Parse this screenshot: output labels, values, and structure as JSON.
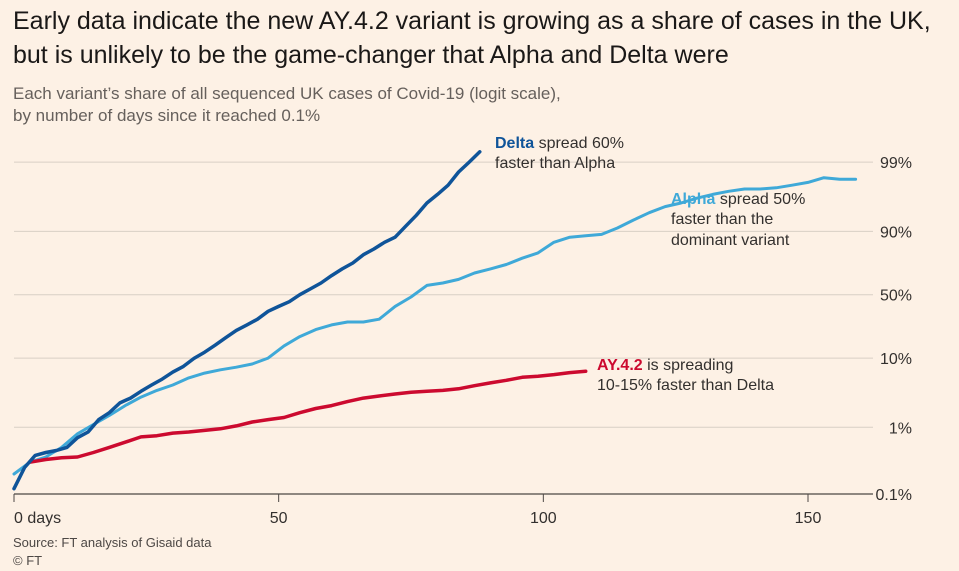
{
  "header": {
    "title": "Early data indicate the new AY.4.2 variant is growing as a share of cases in the UK, but is unlikely to be the game-changer that Alpha and Delta were",
    "subtitle_line1": "Each variant’s share of all sequenced UK cases of Covid-19 (logit scale),",
    "subtitle_line2": "by number of days since it reached 0.1%"
  },
  "footer": {
    "source": "Source: FT analysis of Gisaid data",
    "credit": "© FT"
  },
  "chart_data": {
    "type": "line",
    "x_scale": "linear",
    "y_scale": "logit",
    "xlim": [
      0,
      160
    ],
    "ylim_percent": [
      0.1,
      99.5
    ],
    "x_ticks": [
      {
        "value": 0,
        "label": "0 days"
      },
      {
        "value": 50,
        "label": "50"
      },
      {
        "value": 100,
        "label": "100"
      },
      {
        "value": 150,
        "label": "150"
      }
    ],
    "y_ticks": [
      {
        "value": 0.1,
        "label": "0.1%"
      },
      {
        "value": 1,
        "label": "1%"
      },
      {
        "value": 10,
        "label": "10%"
      },
      {
        "value": 50,
        "label": "50%"
      },
      {
        "value": 90,
        "label": "90%"
      },
      {
        "value": 99,
        "label": "99%"
      }
    ],
    "grid": true,
    "colors": {
      "delta": "#0f5499",
      "alpha": "#3fa9d8",
      "ay42": "#cc0a2f",
      "grid": "#d8cfc5",
      "axis": "#4d4845"
    },
    "series": [
      {
        "key": "delta",
        "x": [
          0,
          2,
          4,
          6,
          8,
          10,
          12,
          14,
          16,
          18,
          20,
          22,
          24,
          26,
          28,
          30,
          32,
          34,
          36,
          38,
          40,
          42,
          44,
          46,
          48,
          50,
          52,
          54,
          56,
          58,
          60,
          62,
          64,
          66,
          68,
          70,
          72,
          74,
          76,
          78,
          80,
          82,
          84,
          86,
          88
        ],
        "y": [
          0.12,
          0.25,
          0.38,
          0.42,
          0.45,
          0.5,
          0.7,
          0.85,
          1.3,
          1.65,
          2.3,
          2.7,
          3.4,
          4.2,
          5.1,
          6.4,
          7.7,
          9.9,
          12.0,
          14.8,
          18.4,
          22.5,
          26.0,
          30.0,
          36.0,
          40.0,
          44.0,
          50.0,
          55.0,
          60.0,
          66.0,
          71.0,
          75.0,
          80.0,
          83.0,
          86.0,
          88.0,
          91.5,
          94.0,
          96.0,
          97.0,
          97.8,
          98.6,
          99.0,
          99.3
        ]
      },
      {
        "key": "alpha",
        "x": [
          0,
          3,
          6,
          9,
          12,
          15,
          18,
          21,
          24,
          27,
          30,
          33,
          36,
          39,
          42,
          45,
          48,
          51,
          54,
          57,
          60,
          63,
          66,
          69,
          72,
          75,
          78,
          81,
          84,
          87,
          90,
          93,
          96,
          99,
          102,
          105,
          108,
          111,
          114,
          117,
          120,
          123,
          126,
          129,
          132,
          135,
          138,
          141,
          144,
          147,
          150,
          153,
          156,
          159
        ],
        "y": [
          0.2,
          0.3,
          0.36,
          0.5,
          0.8,
          1.1,
          1.5,
          2.1,
          2.8,
          3.5,
          4.2,
          5.3,
          6.2,
          6.9,
          7.5,
          8.3,
          10.0,
          14.5,
          19.0,
          23.0,
          26.0,
          28.0,
          28.0,
          30.0,
          40.0,
          48.0,
          58.0,
          60.0,
          63.0,
          68.0,
          71.0,
          74.0,
          78.0,
          81.0,
          86.0,
          88.0,
          88.5,
          89.0,
          91.0,
          93.0,
          94.5,
          95.5,
          96.0,
          96.6,
          97.0,
          97.3,
          97.5,
          97.5,
          97.6,
          97.8,
          98.0,
          98.3,
          98.2,
          98.2
        ]
      },
      {
        "key": "ay42",
        "x": [
          3,
          6,
          9,
          12,
          15,
          18,
          21,
          24,
          27,
          30,
          33,
          36,
          39,
          42,
          45,
          48,
          51,
          54,
          57,
          60,
          63,
          66,
          69,
          72,
          75,
          78,
          81,
          84,
          87,
          90,
          93,
          96,
          99,
          102,
          105,
          108
        ],
        "y": [
          0.3,
          0.33,
          0.35,
          0.36,
          0.42,
          0.5,
          0.6,
          0.72,
          0.75,
          0.82,
          0.85,
          0.9,
          0.95,
          1.05,
          1.2,
          1.3,
          1.4,
          1.65,
          1.9,
          2.1,
          2.4,
          2.7,
          2.9,
          3.1,
          3.3,
          3.4,
          3.5,
          3.7,
          4.1,
          4.5,
          4.9,
          5.4,
          5.6,
          5.9,
          6.3,
          6.6
        ]
      }
    ],
    "annotations": {
      "delta": {
        "bold": "Delta",
        "line1_rest": " spread 60%",
        "line2": "faster than Alpha"
      },
      "alpha": {
        "bold": "Alpha",
        "line1_rest": " spread 50%",
        "line2": "faster than the",
        "line3": "dominant variant"
      },
      "ay42": {
        "bold": "AY.4.2",
        "line1_rest": " is spreading",
        "line2": "10-15% faster than Delta"
      }
    }
  }
}
